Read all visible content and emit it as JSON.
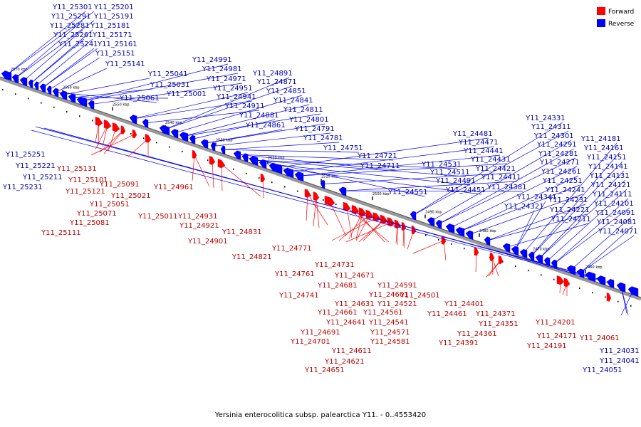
{
  "caption": "Yersinia enterocolitica subsp. palearctica Y11. - 0..4553420",
  "legend": [
    {
      "label": "Forward",
      "color": "#ff0000"
    },
    {
      "label": "Reverse",
      "color": "#0000ff"
    }
  ],
  "ticks": [
    "2570 kbp",
    "2560 kbp",
    "2550 kbp",
    "2540 kbp",
    "2530 kbp",
    "2520 kbp",
    "2510 kbp",
    "2500 kbp",
    "2490 kbp",
    "2480 kbp",
    "2470 kbp",
    "2460 kbp"
  ],
  "reverse_labels": [
    "Y11_25301",
    "Y11_25201",
    "Y11_25291",
    "Y11_25191",
    "Y11_25281",
    "Y11_25181",
    "Y11_25261",
    "Y11_25171",
    "Y11_25241",
    "Y11_25161",
    "Y11_25151",
    "Y11_25141",
    "Y11_25061",
    "Y11_25041",
    "Y11_25031",
    "Y11_25001",
    "Y11_24991",
    "Y11_24981",
    "Y11_24971",
    "Y11_24951",
    "Y11_24941",
    "Y11_24911",
    "Y11_24891",
    "Y11_24871",
    "Y11_24851",
    "Y11_24841",
    "Y11_24811",
    "Y11_24881",
    "Y11_24861",
    "Y11_24801",
    "Y11_24791",
    "Y11_24781",
    "Y11_24751",
    "Y11_24721",
    "Y11_24711",
    "Y11_24551",
    "Y11_24531",
    "Y11_24511",
    "Y11_24491",
    "Y11_24451",
    "Y11_24481",
    "Y11_24471",
    "Y11_24441",
    "Y11_24431",
    "Y11_24421",
    "Y11_24411",
    "Y11_24381",
    "Y11_24331",
    "Y11_24311",
    "Y11_24301",
    "Y11_24291",
    "Y11_24281",
    "Y11_24271",
    "Y11_24261",
    "Y11_24251",
    "Y11_24241",
    "Y11_24231",
    "Y11_24221",
    "Y11_24211",
    "Y11_24341",
    "Y11_24321",
    "Y11_24181",
    "Y11_24161",
    "Y11_24151",
    "Y11_24141",
    "Y11_24131",
    "Y11_24121",
    "Y11_24111",
    "Y11_24101",
    "Y11_24091",
    "Y11_24081",
    "Y11_24071",
    "Y11_25251",
    "Y11_25221",
    "Y11_25211",
    "Y11_25231",
    "Y11_24031",
    "Y11_24041",
    "Y11_24051"
  ],
  "forward_labels": [
    "Y11_25131",
    "Y11_25101",
    "Y11_25091",
    "Y11_25121",
    "Y11_25051",
    "Y11_25071",
    "Y11_25081",
    "Y11_25111",
    "Y11_25021",
    "Y11_25011",
    "Y11_24961",
    "Y11_24931",
    "Y11_24921",
    "Y11_24901",
    "Y11_24831",
    "Y11_24821",
    "Y11_24771",
    "Y11_24731",
    "Y11_24761",
    "Y11_24741",
    "Y11_24681",
    "Y11_24671",
    "Y11_24591",
    "Y11_24601",
    "Y11_24631",
    "Y11_24661",
    "Y11_24641",
    "Y11_24691",
    "Y11_24701",
    "Y11_24611",
    "Y11_24621",
    "Y11_24651",
    "Y11_24571",
    "Y11_24581",
    "Y11_24561",
    "Y11_24541",
    "Y11_24521",
    "Y11_24501",
    "Y11_24461",
    "Y11_24401",
    "Y11_24371",
    "Y11_24351",
    "Y11_24361",
    "Y11_24391",
    "Y11_24201",
    "Y11_24171",
    "Y11_24191",
    "Y11_24061"
  ]
}
